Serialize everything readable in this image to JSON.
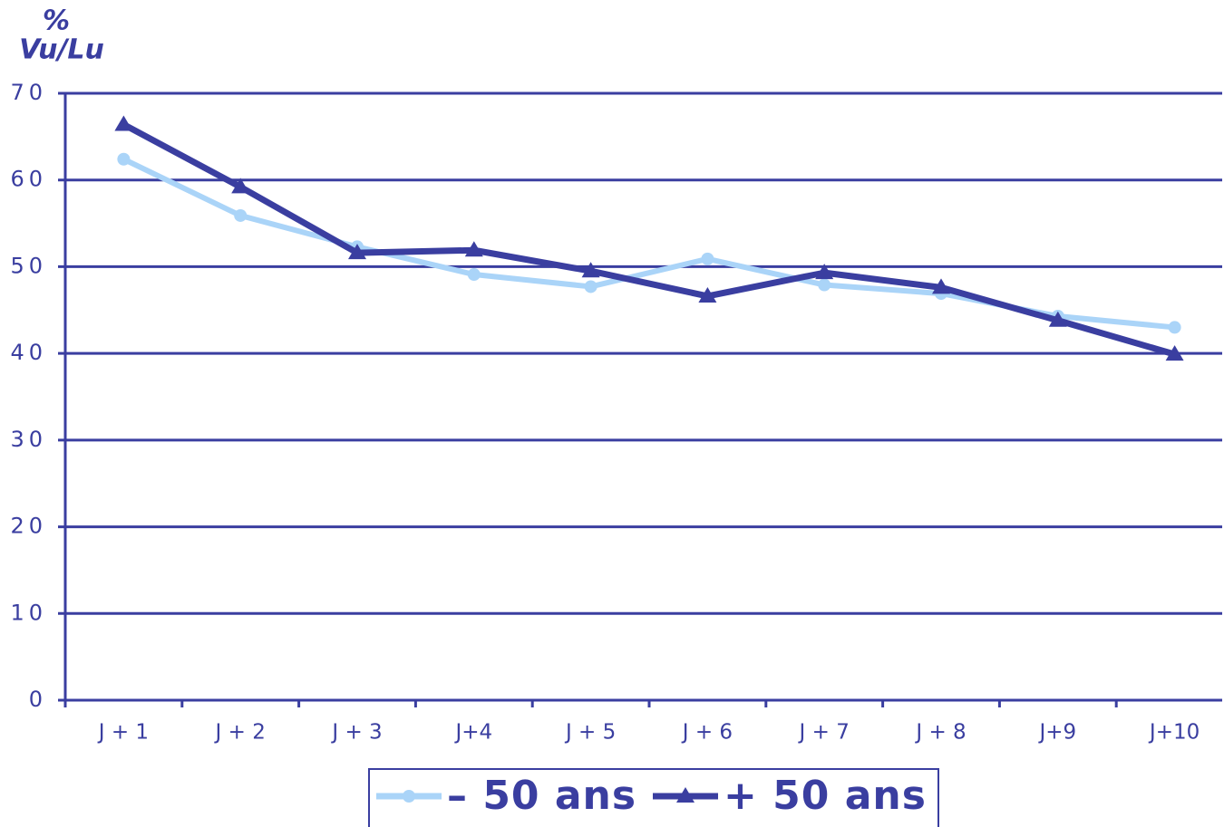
{
  "chart_data": {
    "type": "line",
    "y_unit": "%",
    "y_label": "Vu/Lu",
    "categories": [
      "J + 1",
      "J + 2",
      "J + 3",
      "J+4",
      "J + 5",
      "J + 6",
      "J + 7",
      "J + 8",
      "J+9",
      "J+10"
    ],
    "series": [
      {
        "name": "– 50 ans",
        "color": "#aad4f8",
        "marker": "circle",
        "values": [
          62.4,
          55.9,
          52.3,
          49.1,
          47.7,
          50.9,
          47.9,
          46.9,
          44.3,
          43.0
        ]
      },
      {
        "name": "+ 50 ans",
        "color": "#3a3ea0",
        "marker": "triangle",
        "values": [
          66.4,
          59.2,
          51.6,
          51.9,
          49.5,
          46.6,
          49.3,
          47.6,
          43.8,
          39.9
        ]
      }
    ],
    "ylim": [
      0,
      70
    ],
    "yticks": [
      0,
      10,
      20,
      30,
      40,
      50,
      60,
      70
    ],
    "grid": true,
    "grid_color": "#3a3ea0",
    "legend": "bottom"
  }
}
